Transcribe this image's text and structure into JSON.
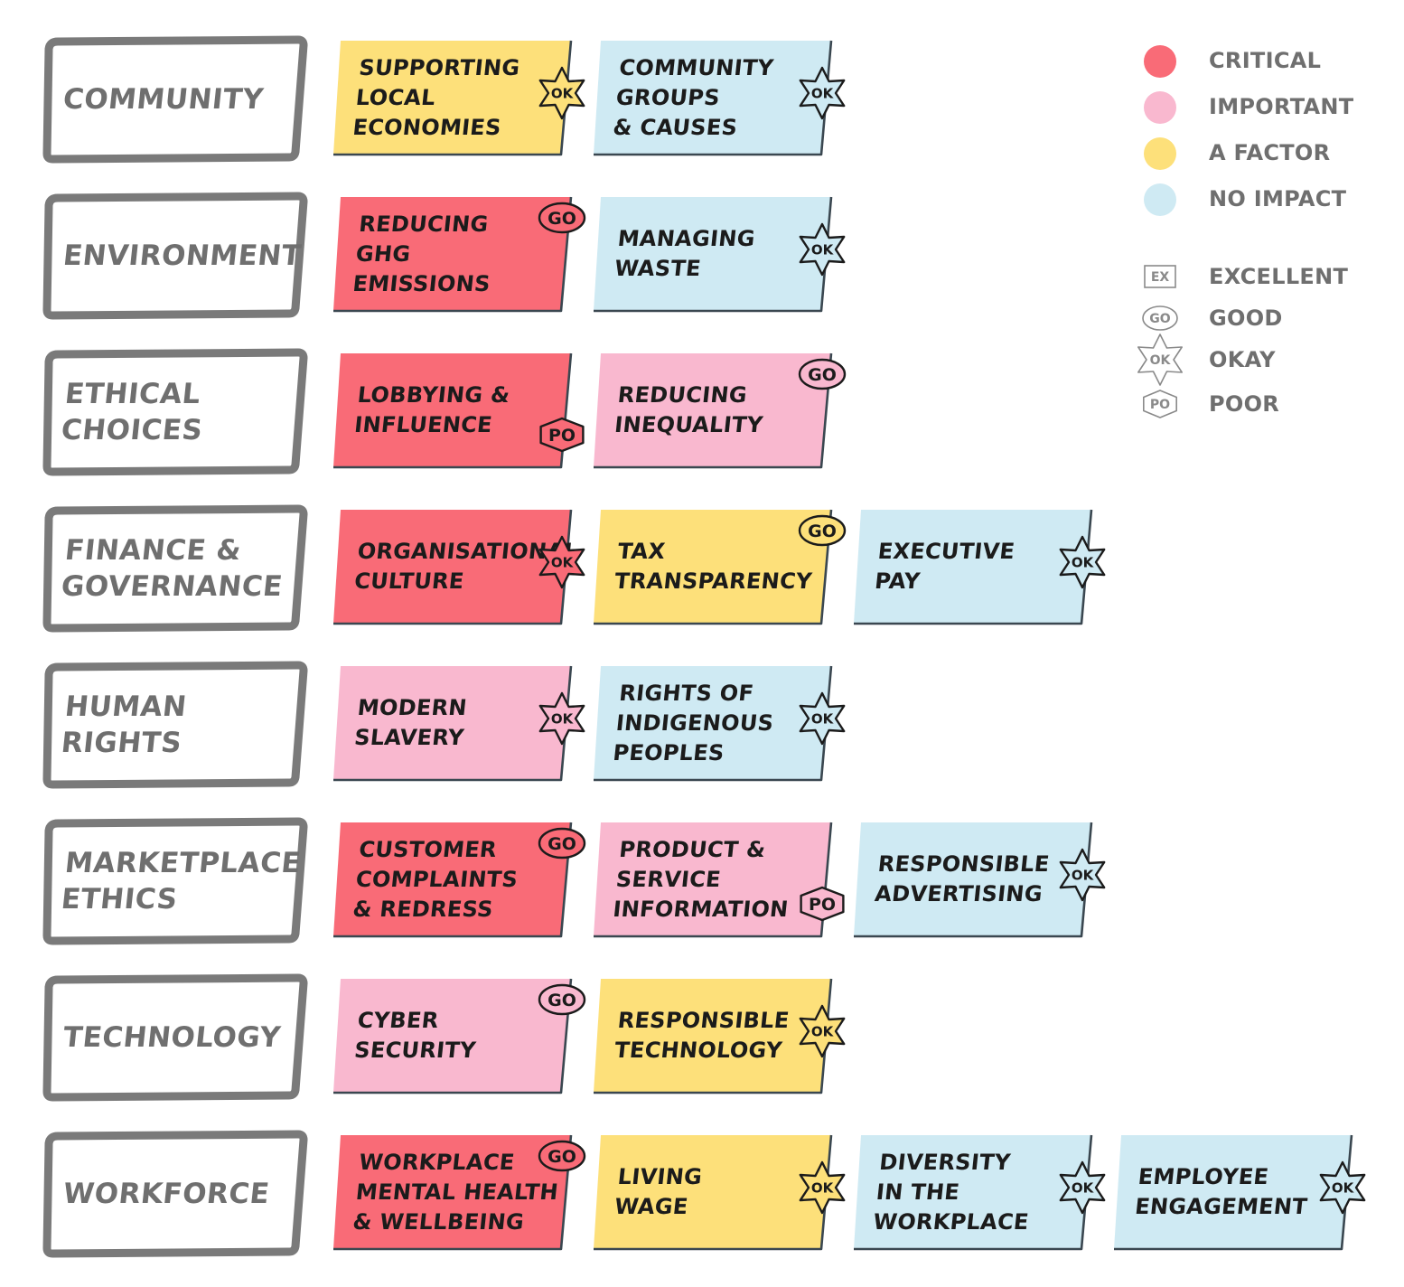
{
  "colors": {
    "critical": "#f96b77",
    "important": "#f9b8cf",
    "factor": "#fde07a",
    "no_impact": "#cfeaf3",
    "outline": "#3a4750",
    "category_border": "#7a7a7a",
    "category_text": "#6f6f6f",
    "legend_text": "#6f6f6f"
  },
  "legend": {
    "impact": [
      {
        "label": "CRITICAL",
        "level": "critical"
      },
      {
        "label": "IMPORTANT",
        "level": "important"
      },
      {
        "label": "A FACTOR",
        "level": "factor"
      },
      {
        "label": "NO IMPACT",
        "level": "no_impact"
      }
    ],
    "ratings": [
      {
        "label": "EXCELLENT",
        "code": "EX",
        "shape": "square-icon"
      },
      {
        "label": "GOOD",
        "code": "GO",
        "shape": "oval-icon"
      },
      {
        "label": "OKAY",
        "code": "OK",
        "shape": "star-icon"
      },
      {
        "label": "POOR",
        "code": "PO",
        "shape": "hexagon-icon"
      }
    ]
  },
  "categories": [
    {
      "name": "COMMUNITY",
      "issues": [
        {
          "label": "SUPPORTING\nLOCAL\nECONOMIES",
          "level": "factor",
          "rating": "OK"
        },
        {
          "label": "COMMUNITY\nGROUPS\n& CAUSES",
          "level": "no_impact",
          "rating": "OK"
        }
      ]
    },
    {
      "name": "ENVIRONMENT",
      "issues": [
        {
          "label": "REDUCING\nGHG\nEMISSIONS",
          "level": "critical",
          "rating": "GO"
        },
        {
          "label": "MANAGING\nWASTE",
          "level": "no_impact",
          "rating": "OK"
        }
      ]
    },
    {
      "name": "ETHICAL\nCHOICES",
      "issues": [
        {
          "label": "LOBBYING &\nINFLUENCE",
          "level": "critical",
          "rating": "PO"
        },
        {
          "label": "REDUCING\nINEQUALITY",
          "level": "important",
          "rating": "GO"
        }
      ]
    },
    {
      "name": "FINANCE &\nGOVERNANCE",
      "issues": [
        {
          "label": "ORGANISATIONAL\nCULTURE",
          "level": "critical",
          "rating": "OK"
        },
        {
          "label": "TAX\nTRANSPARENCY",
          "level": "factor",
          "rating": "GO"
        },
        {
          "label": "EXECUTIVE\nPAY",
          "level": "no_impact",
          "rating": "OK"
        }
      ]
    },
    {
      "name": "HUMAN\nRIGHTS",
      "issues": [
        {
          "label": "MODERN\nSLAVERY",
          "level": "important",
          "rating": "OK"
        },
        {
          "label": "RIGHTS OF\nINDIGENOUS\nPEOPLES",
          "level": "no_impact",
          "rating": "OK"
        }
      ]
    },
    {
      "name": "MARKETPLACE\nETHICS",
      "issues": [
        {
          "label": "CUSTOMER\nCOMPLAINTS\n& REDRESS",
          "level": "critical",
          "rating": "GO"
        },
        {
          "label": "PRODUCT &\nSERVICE\nINFORMATION",
          "level": "important",
          "rating": "PO"
        },
        {
          "label": "RESPONSIBLE\nADVERTISING",
          "level": "no_impact",
          "rating": "OK"
        }
      ]
    },
    {
      "name": "TECHNOLOGY",
      "issues": [
        {
          "label": "CYBER\nSECURITY",
          "level": "important",
          "rating": "GO"
        },
        {
          "label": "RESPONSIBLE\nTECHNOLOGY",
          "level": "factor",
          "rating": "OK"
        }
      ]
    },
    {
      "name": "WORKFORCE",
      "issues": [
        {
          "label": "WORKPLACE\nMENTAL HEALTH\n& WELLBEING",
          "level": "critical",
          "rating": "GO"
        },
        {
          "label": "LIVING\nWAGE",
          "level": "factor",
          "rating": "OK"
        },
        {
          "label": "DIVERSITY\nIN THE\nWORKPLACE",
          "level": "no_impact",
          "rating": "OK"
        },
        {
          "label": "EMPLOYEE\nENGAGEMENT",
          "level": "no_impact",
          "rating": "OK"
        }
      ]
    }
  ]
}
